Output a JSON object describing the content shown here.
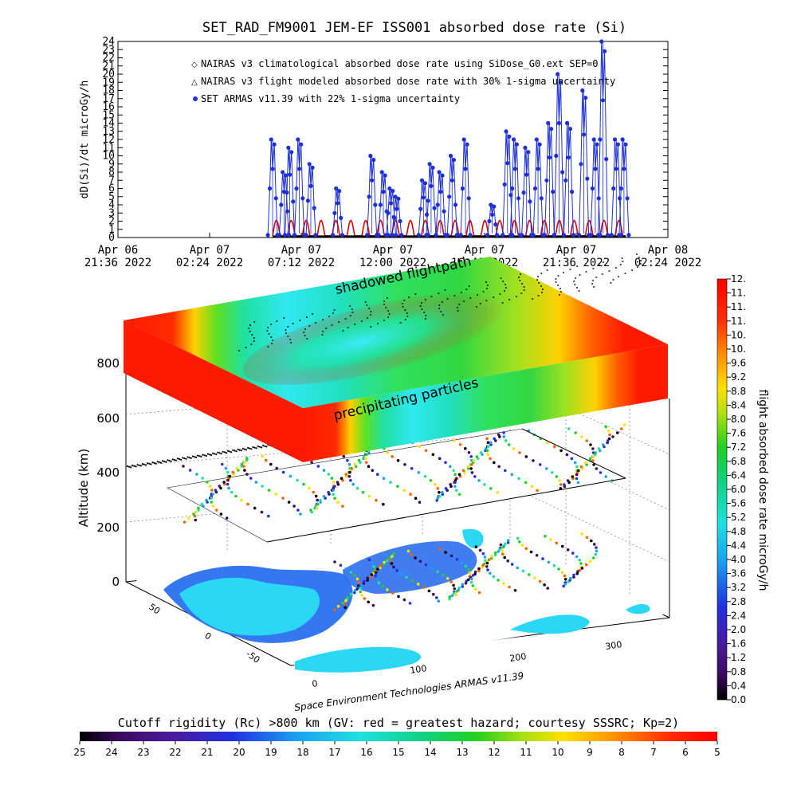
{
  "chart_data": [
    {
      "type": "line",
      "title": "SET_RAD_FM9001  JEM-EF ISS001 absorbed dose rate (Si)",
      "ylabel": "dD(Si)/dt microGy/h",
      "ylim": [
        0,
        24
      ],
      "yticks": [
        "0",
        "1",
        "2",
        "3",
        "4",
        "5",
        "6",
        "7",
        "8",
        "9",
        "10",
        "11",
        "12",
        "13",
        "14",
        "15",
        "16",
        "17",
        "18",
        "19",
        "20",
        "21",
        "22",
        "23",
        "24"
      ],
      "xticks": [
        {
          "day": "Apr 06",
          "time": "21:36 2022"
        },
        {
          "day": "Apr 07",
          "time": "02:24 2022"
        },
        {
          "day": "Apr 07",
          "time": "07:12 2022"
        },
        {
          "day": "Apr 07",
          "time": "12:00 2022"
        },
        {
          "day": "Apr 07",
          "time": "16:48 2022"
        },
        {
          "day": "Apr 07",
          "time": "21:36 2022"
        },
        {
          "day": "Apr 08",
          "time": "02:24 2022"
        }
      ],
      "x_hours": [
        0,
        4.8,
        9.6,
        14.4,
        19.2,
        24,
        28.8
      ],
      "legend": [
        {
          "symbol": "◇",
          "color": "#e00000",
          "label": "NAIRAS v3 climatological absorbed dose rate using SiDose_G0.ext SEP=0"
        },
        {
          "symbol": "△",
          "color": "#000000",
          "label": "NAIRAS v3 flight modeled absorbed dose rate with 30% 1-sigma uncertainty"
        },
        {
          "symbol": "●",
          "color": "#0000e0",
          "label": "SET ARMAS v11.39 with 22% 1-sigma uncertainty"
        }
      ],
      "legend_position": "top-left",
      "series": [
        {
          "name": "SET ARMAS v11.39 with 22% 1-sigma uncertainty",
          "color": "#1c2fd8",
          "x_hours": [
            8.1,
            8.7,
            9.0,
            9.5,
            10.1,
            11.5,
            13.3,
            13.9,
            14.3,
            14.6,
            16.0,
            16.4,
            16.9,
            17.5,
            18.2,
            19.6,
            20.4,
            20.8,
            21.4,
            22.0,
            22.6,
            23.1,
            23.6,
            24.4,
            25.0,
            25.4,
            26.1,
            26.5
          ],
          "peaks": [
            12,
            8,
            11,
            12,
            9,
            6,
            10,
            8,
            6,
            5,
            7,
            9,
            8,
            10,
            12,
            4,
            13,
            12,
            11,
            12,
            14,
            20,
            14,
            18,
            12,
            24,
            12,
            12
          ],
          "baseline": 0.3
        },
        {
          "name": "NAIRAS v3 climatological absorbed dose rate using SiDose_G0.ext SEP=0",
          "color": "#e00000",
          "x_start_hours": 8.1,
          "x_end_hours": 26.6,
          "period_hours": 0.78,
          "amplitude": [
            0.2,
            2.1
          ]
        }
      ]
    },
    {
      "type": "scatter",
      "zlabel": "Altitude (km)",
      "zticks": [
        "0",
        "200",
        "400",
        "600",
        "800"
      ],
      "lat_ticks": [
        "50",
        "0",
        "-50"
      ],
      "lon_ticks": [
        "0",
        "100",
        "200",
        "300"
      ],
      "annotations": [
        "shadowed flightpath",
        "precipitating particles"
      ],
      "credit": "Space Environment Technologies ARMAS v11.39",
      "colorbar": {
        "label": "flight absorbed dose rate microGy/h",
        "ticks": [
          "0.0",
          "0.4",
          "0.8",
          "1.2",
          "1.6",
          "2.0",
          "2.4",
          "2.8",
          "3.2",
          "3.6",
          "4.0",
          "4.4",
          "4.8",
          "5.2",
          "5.6",
          "6.0",
          "6.4",
          "6.8",
          "7.2",
          "7.6",
          "8.0",
          "8.4",
          "8.8",
          "9.2",
          "9.6",
          "10.",
          "10.",
          "11.",
          "11.",
          "11.",
          "12."
        ]
      }
    },
    {
      "type": "heatmap",
      "title": "Cutoff rigidity (Rc) >800 km (GV: red = greatest hazard; courtesy SSSRC; Kp=2)",
      "ticks": [
        "25",
        "24",
        "23",
        "22",
        "21",
        "20",
        "19",
        "18",
        "17",
        "16",
        "15",
        "14",
        "13",
        "12",
        "11",
        "10",
        "9",
        "8",
        "7",
        "6",
        "5"
      ]
    }
  ],
  "colors": {
    "background": "#ffffff",
    "armas": "#1c2fd8",
    "nairas": "#e00000",
    "hazard_red": "#ff1a00",
    "ocean_blue": "#2a6ff0",
    "land_cyan": "#2ad8f5"
  }
}
